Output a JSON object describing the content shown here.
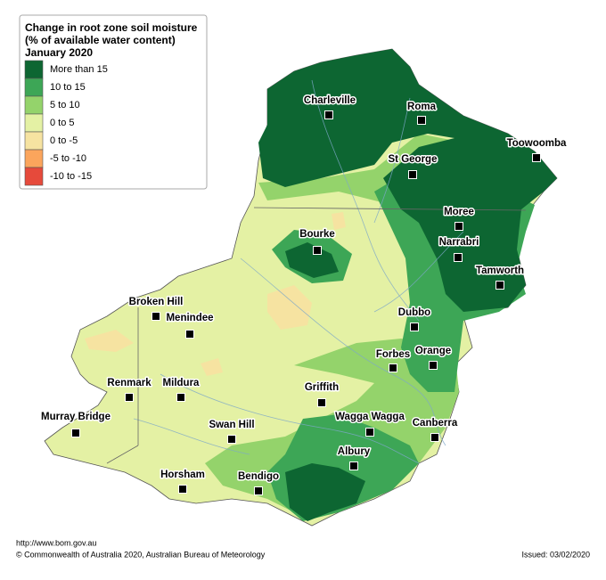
{
  "legend": {
    "title": [
      "Change in root zone soil moisture",
      "(% of available water content)",
      "January 2020"
    ],
    "items": [
      {
        "label": "More than 15",
        "color": "#0d6632"
      },
      {
        "label": "10 to 15",
        "color": "#3da656"
      },
      {
        "label": "5 to 10",
        "color": "#94d36b"
      },
      {
        "label": "0 to 5",
        "color": "#e4f1a4"
      },
      {
        "label": "0 to -5",
        "color": "#f6e3a1"
      },
      {
        "label": "-5 to -10",
        "color": "#fba55c"
      },
      {
        "label": "-10 to -15",
        "color": "#e64a3b"
      }
    ]
  },
  "cities": [
    "Charleville",
    "Roma",
    "Toowoomba",
    "St George",
    "Moree",
    "Narrabri",
    "Bourke",
    "Tamworth",
    "Broken Hill",
    "Menindee",
    "Dubbo",
    "Forbes",
    "Orange",
    "Renmark",
    "Mildura",
    "Griffith",
    "Wagga Wagga",
    "Canberra",
    "Murray Bridge",
    "Swan Hill",
    "Albury",
    "Horsham",
    "Bendigo"
  ],
  "footer": {
    "url": "http://www.bom.gov.au",
    "copyright": "© Commonwealth of Australia 2020, Australian Bureau of Meteorology",
    "issued": "Issued: 03/02/2020"
  }
}
